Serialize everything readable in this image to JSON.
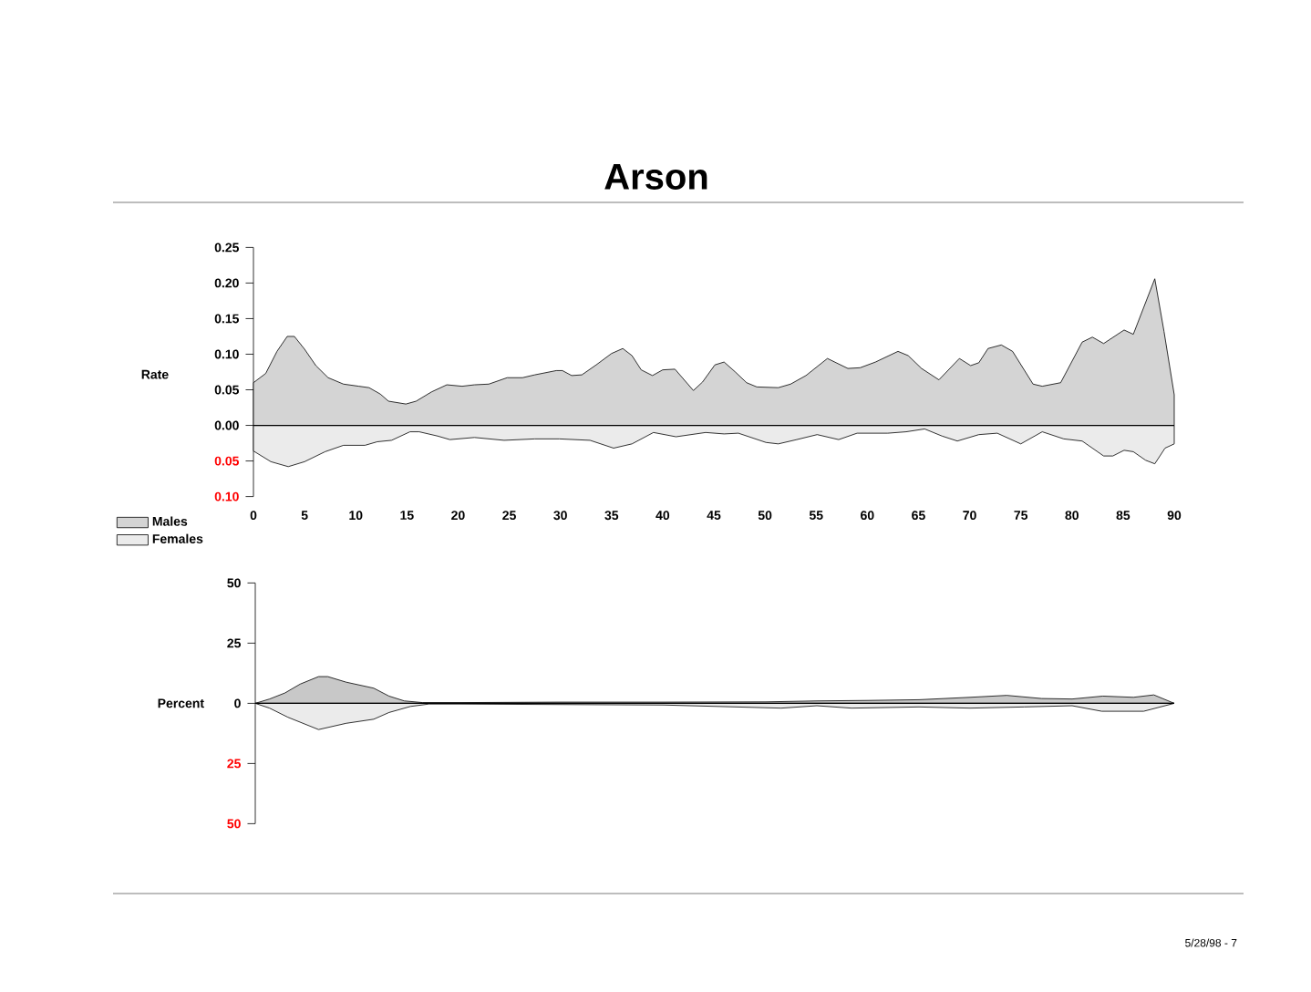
{
  "chart_data": [
    {
      "type": "area",
      "title": "Arson",
      "ylabel": "Rate",
      "xlim": [
        0,
        90
      ],
      "xticks": [
        0,
        5,
        10,
        15,
        20,
        25,
        30,
        35,
        40,
        45,
        50,
        55,
        60,
        65,
        70,
        75,
        80,
        85,
        90
      ],
      "ylim": [
        -0.1,
        0.25
      ],
      "yticks": [
        {
          "value": 0.25,
          "label": "0.25"
        },
        {
          "value": 0.2,
          "label": "0.20"
        },
        {
          "value": 0.15,
          "label": "0.15"
        },
        {
          "value": 0.1,
          "label": "0.10"
        },
        {
          "value": 0.05,
          "label": "0.05"
        },
        {
          "value": 0,
          "label": "0.00"
        },
        {
          "value": -0.05,
          "label": "0.05"
        },
        {
          "value": -0.1,
          "label": "0.10"
        }
      ],
      "legend": "bottom left",
      "annotations": [
        "5/28/98 - 7"
      ],
      "series": [
        {
          "name": "Males",
          "color": "#d4d4d4",
          "x": [
            0,
            1.2,
            2.3,
            3.3,
            4,
            5,
            6.1,
            7.3,
            8.8,
            10.3,
            11.3,
            12.4,
            13.2,
            14.9,
            15.9,
            17.4,
            18.9,
            20.4,
            21.6,
            23,
            24.8,
            26.3,
            27.5,
            29.6,
            30.2,
            31.1,
            32.1,
            33.5,
            35,
            36.1,
            37,
            37.9,
            39,
            40,
            41.2,
            43,
            43.9,
            45.1,
            46,
            47.1,
            48.2,
            49.2,
            51.3,
            52.5,
            54,
            56.1,
            58.1,
            59.3,
            60.8,
            63,
            64,
            65.3,
            67,
            69,
            70.1,
            70.9,
            71.8,
            73.1,
            74.2,
            76.2,
            77.1,
            78.9,
            81,
            82,
            83.1,
            85.1,
            86,
            88.1,
            89,
            90
          ],
          "values": [
            0.06,
            0.073,
            0.104,
            0.125,
            0.125,
            0.107,
            0.084,
            0.067,
            0.058,
            0.055,
            0.053,
            0.044,
            0.034,
            0.03,
            0.034,
            0.047,
            0.057,
            0.055,
            0.057,
            0.058,
            0.067,
            0.067,
            0.071,
            0.077,
            0.077,
            0.07,
            0.071,
            0.085,
            0.101,
            0.108,
            0.098,
            0.078,
            0.07,
            0.078,
            0.079,
            0.049,
            0.061,
            0.085,
            0.089,
            0.075,
            0.06,
            0.054,
            0.053,
            0.058,
            0.07,
            0.094,
            0.08,
            0.081,
            0.089,
            0.104,
            0.098,
            0.08,
            0.064,
            0.094,
            0.084,
            0.088,
            0.108,
            0.113,
            0.104,
            0.058,
            0.055,
            0.06,
            0.117,
            0.124,
            0.115,
            0.134,
            0.128,
            0.206,
            0.132,
            0.043
          ]
        },
        {
          "name": "Females",
          "color": "#ebebeb",
          "x": [
            0,
            1.7,
            3.4,
            5,
            7,
            8.8,
            10.9,
            12.1,
            13.5,
            15.3,
            16.2,
            18,
            19.2,
            21.6,
            24.5,
            27.5,
            29.9,
            32.9,
            35.2,
            37,
            39.1,
            41.3,
            44.2,
            46,
            47.4,
            50.1,
            51.3,
            53.1,
            55.1,
            57.2,
            59,
            62,
            63.8,
            65.6,
            67.3,
            68.8,
            70.9,
            72.7,
            75,
            77.1,
            79.2,
            81,
            83.1,
            84,
            85.1,
            86,
            87.2,
            88.1,
            89.1,
            90
          ],
          "values": [
            -0.036,
            -0.051,
            -0.058,
            -0.051,
            -0.037,
            -0.028,
            -0.028,
            -0.023,
            -0.021,
            -0.009,
            -0.009,
            -0.015,
            -0.02,
            -0.017,
            -0.021,
            -0.019,
            -0.019,
            -0.021,
            -0.032,
            -0.026,
            -0.01,
            -0.016,
            -0.01,
            -0.012,
            -0.011,
            -0.024,
            -0.026,
            -0.02,
            -0.013,
            -0.02,
            -0.011,
            -0.011,
            -0.009,
            -0.005,
            -0.015,
            -0.022,
            -0.013,
            -0.011,
            -0.026,
            -0.009,
            -0.019,
            -0.022,
            -0.043,
            -0.043,
            -0.035,
            -0.037,
            -0.049,
            -0.054,
            -0.032,
            -0.026
          ]
        }
      ]
    },
    {
      "type": "area",
      "ylabel": "Percent",
      "xlim": [
        0,
        90
      ],
      "ylim": [
        -50,
        50
      ],
      "yticks": [
        50,
        25,
        0,
        {
          "value": -25,
          "label": "25"
        },
        {
          "value": -50,
          "label": "50"
        }
      ],
      "tick_labels": "y",
      "series": [
        {
          "color": "#c8c8c8",
          "x": [
            0,
            1.4,
            2.9,
            4.4,
            6.2,
            7.1,
            8.9,
            11.6,
            13.1,
            14.6,
            16.4,
            20,
            30,
            40,
            50,
            55,
            60,
            65,
            70,
            73.6,
            77,
            80,
            83,
            86,
            88,
            90
          ],
          "values": [
            0,
            1.8,
            4.3,
            8,
            11.1,
            11.1,
            8.8,
            6.3,
            3,
            1,
            0.3,
            0.3,
            0.5,
            0.5,
            0.6,
            1,
            1.2,
            1.5,
            2.5,
            3.3,
            2,
            1.8,
            3,
            2.5,
            3.5,
            0
          ]
        },
        {
          "color": "#ebebeb",
          "x": [
            0,
            1.4,
            3.2,
            6.2,
            8.9,
            11.6,
            13.1,
            15.2,
            17,
            20,
            30,
            40,
            51.5,
            55,
            58.4,
            65,
            70,
            75.3,
            80,
            82.9,
            87,
            90
          ],
          "values": [
            0,
            -2,
            -5.8,
            -10.9,
            -8.3,
            -6.6,
            -3.8,
            -1.3,
            -0.3,
            -0.3,
            -0.5,
            -0.7,
            -2,
            -1,
            -2,
            -1.5,
            -2,
            -1.5,
            -1,
            -3.3,
            -3.3,
            0
          ]
        }
      ]
    }
  ]
}
